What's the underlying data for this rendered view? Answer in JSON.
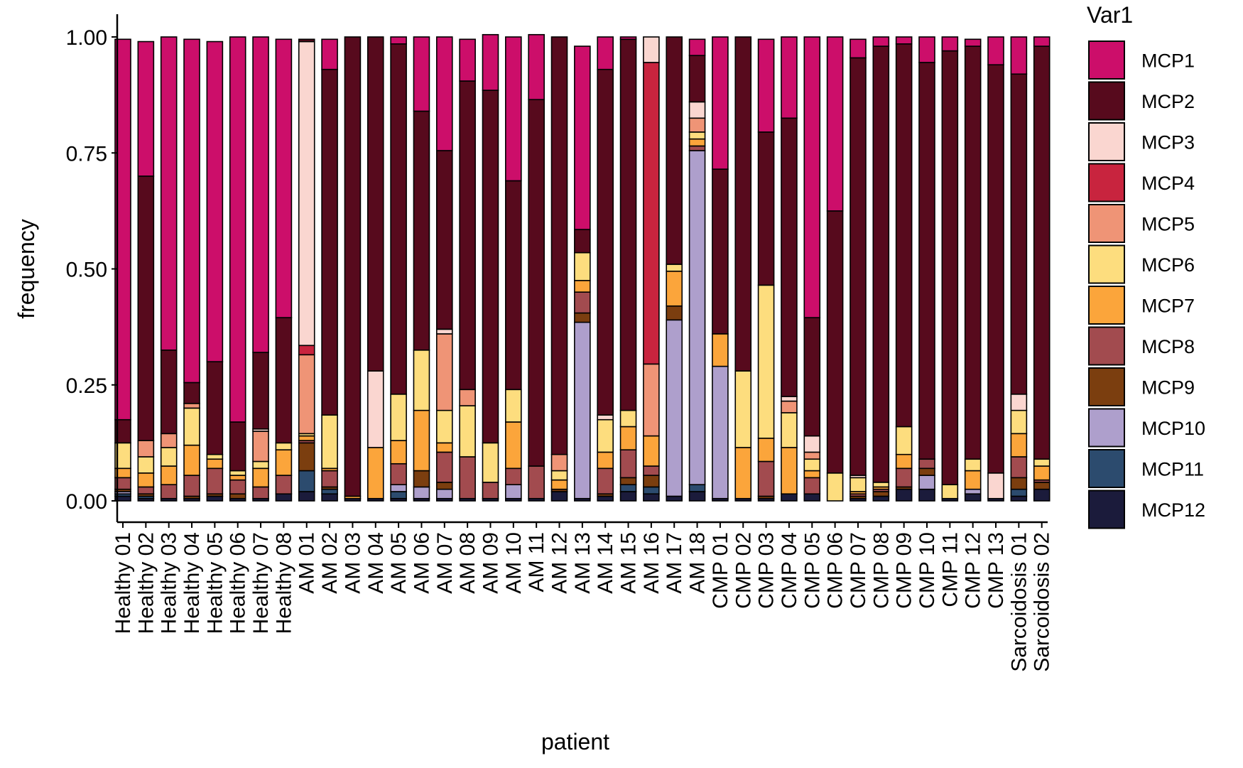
{
  "chart_data": {
    "type": "bar",
    "stacked": true,
    "xlabel": "patient",
    "ylabel": "frequency",
    "ylim": [
      0,
      1
    ],
    "yticks": [
      "0.00",
      "0.25",
      "0.50",
      "0.75",
      "1.00"
    ],
    "ytick_values": [
      0,
      0.25,
      0.5,
      0.75,
      1.0
    ],
    "grid": false,
    "legend": {
      "title": "Var1",
      "placement": "right"
    },
    "categories": [
      "Healthy 01",
      "Healthy 02",
      "Healthy 03",
      "Healthy 04",
      "Healthy 05",
      "Healthy 06",
      "Healthy 07",
      "Healthy 08",
      "AM 01",
      "AM 02",
      "AM 03",
      "AM 04",
      "AM 05",
      "AM 06",
      "AM 07",
      "AM 08",
      "AM 09",
      "AM 10",
      "AM 11",
      "AM 12",
      "AM 13",
      "AM 14",
      "AM 15",
      "AM 16",
      "AM 17",
      "AM 18",
      "CMP 01",
      "CMP 02",
      "CMP 03",
      "CMP 04",
      "CMP 05",
      "CMP 06",
      "CMP 07",
      "CMP 08",
      "CMP 09",
      "CMP 10",
      "CMP 11",
      "CMP 12",
      "CMP 13",
      "Sarcoidosis 01",
      "Sarcoidosis 02"
    ],
    "series": [
      {
        "name": "MCP1",
        "color": "#CC0E6A",
        "values": [
          0.82,
          0.29,
          0.675,
          0.74,
          0.69,
          0.83,
          0.68,
          0.6,
          0,
          0.065,
          0,
          0,
          0.015,
          0.16,
          0.245,
          0.09,
          0.12,
          0.31,
          0.14,
          0,
          0.395,
          0.07,
          0.005,
          0,
          0,
          0.035,
          0.285,
          0,
          0.2,
          0.175,
          0.605,
          0.375,
          0.04,
          0.02,
          0.015,
          0.055,
          0.03,
          0.015,
          0.06,
          0.08,
          0.02
        ]
      },
      {
        "name": "MCP2",
        "color": "#570A1D",
        "values": [
          0.05,
          0.57,
          0.18,
          0.045,
          0.2,
          0.105,
          0.165,
          0.27,
          0.005,
          0.745,
          0.99,
          0.72,
          0.755,
          0.515,
          0.385,
          0.665,
          0.76,
          0.45,
          0.79,
          0.9,
          0.05,
          0.745,
          0.8,
          0,
          0.49,
          0.1,
          0.355,
          0.72,
          0.33,
          0.6,
          0.255,
          0.565,
          0.9,
          0.94,
          0.825,
          0.855,
          0.935,
          0.89,
          0.88,
          0.69,
          0.89
        ]
      },
      {
        "name": "MCP3",
        "color": "#FAD6D0",
        "values": [
          0,
          0,
          0,
          0,
          0,
          0,
          0.005,
          0,
          0.655,
          0,
          0,
          0.165,
          0,
          0,
          0.01,
          0,
          0,
          0,
          0,
          0,
          0,
          0.01,
          0,
          0.055,
          0,
          0.035,
          0,
          0,
          0,
          0.01,
          0.035,
          0,
          0.005,
          0,
          0,
          0,
          0,
          0,
          0.055,
          0.035,
          0
        ]
      },
      {
        "name": "MCP4",
        "color": "#C8243E",
        "values": [
          0,
          0,
          0,
          0,
          0,
          0,
          0,
          0,
          0.02,
          0,
          0,
          0,
          0,
          0,
          0,
          0,
          0,
          0,
          0,
          0,
          0,
          0,
          0,
          0.65,
          0,
          0,
          0,
          0,
          0,
          0,
          0,
          0,
          0,
          0,
          0,
          0,
          0,
          0,
          0,
          0,
          0
        ]
      },
      {
        "name": "MCP5",
        "color": "#EF9476",
        "values": [
          0,
          0.035,
          0.03,
          0.01,
          0,
          0,
          0.065,
          0,
          0.17,
          0,
          0,
          0,
          0,
          0,
          0.165,
          0.035,
          0,
          0,
          0,
          0.035,
          0,
          0,
          0,
          0.155,
          0,
          0.03,
          0,
          0,
          0,
          0.025,
          0.015,
          0,
          0,
          0,
          0,
          0,
          0,
          0,
          0,
          0,
          0
        ]
      },
      {
        "name": "MCP6",
        "color": "#FDDD7E",
        "values": [
          0.055,
          0.035,
          0.04,
          0.08,
          0.01,
          0.01,
          0.015,
          0.015,
          0.005,
          0.115,
          0,
          0,
          0.1,
          0.13,
          0.07,
          0.11,
          0.085,
          0.07,
          0,
          0.02,
          0.06,
          0.07,
          0.035,
          0,
          0.015,
          0.015,
          0,
          0.165,
          0.33,
          0.075,
          0.025,
          0.06,
          0.03,
          0.01,
          0.06,
          0,
          0.03,
          0.025,
          0,
          0.05,
          0.015
        ]
      },
      {
        "name": "MCP7",
        "color": "#FBA53B",
        "values": [
          0.02,
          0.03,
          0.04,
          0.065,
          0.02,
          0.01,
          0.04,
          0.055,
          0.01,
          0.005,
          0.005,
          0.11,
          0.05,
          0.13,
          0.02,
          0,
          0,
          0.1,
          0,
          0.02,
          0.025,
          0.035,
          0.05,
          0.065,
          0.075,
          0.015,
          0.07,
          0.11,
          0.05,
          0.1,
          0.015,
          0,
          0.005,
          0.005,
          0.03,
          0,
          0,
          0.04,
          0,
          0.05,
          0.03
        ]
      },
      {
        "name": "MCP8",
        "color": "#A24B4F",
        "values": [
          0.025,
          0.015,
          0.03,
          0.045,
          0.055,
          0.03,
          0.025,
          0.04,
          0.005,
          0.035,
          0,
          0,
          0.045,
          0,
          0.065,
          0.09,
          0.035,
          0.035,
          0.07,
          0,
          0.045,
          0.055,
          0.06,
          0.02,
          0,
          0.01,
          0,
          0,
          0.075,
          0,
          0.035,
          0,
          0.005,
          0.005,
          0.04,
          0.02,
          0,
          0,
          0,
          0.045,
          0.005
        ]
      },
      {
        "name": "MCP9",
        "color": "#7B3E0F",
        "values": [
          0.005,
          0.005,
          0,
          0.005,
          0.005,
          0.01,
          0,
          0,
          0.06,
          0.005,
          0,
          0,
          0,
          0.035,
          0.015,
          0,
          0,
          0,
          0,
          0.005,
          0.02,
          0.005,
          0.015,
          0.025,
          0.03,
          0,
          0,
          0,
          0.005,
          0,
          0,
          0,
          0.005,
          0.01,
          0.005,
          0.015,
          0,
          0,
          0,
          0.025,
          0.015
        ]
      },
      {
        "name": "MCP10",
        "color": "#AE9FCC",
        "values": [
          0.005,
          0,
          0,
          0,
          0,
          0,
          0,
          0,
          0,
          0,
          0,
          0,
          0.015,
          0.025,
          0.02,
          0,
          0,
          0.03,
          0,
          0,
          0.38,
          0,
          0,
          0,
          0.38,
          0.72,
          0.285,
          0,
          0,
          0,
          0,
          0,
          0,
          0,
          0,
          0.03,
          0,
          0.01,
          0,
          0,
          0
        ]
      },
      {
        "name": "MCP11",
        "color": "#2C4B6E",
        "values": [
          0.005,
          0.005,
          0,
          0,
          0,
          0,
          0,
          0,
          0.045,
          0.01,
          0,
          0,
          0.015,
          0,
          0,
          0,
          0,
          0,
          0,
          0,
          0,
          0,
          0.015,
          0.015,
          0,
          0.015,
          0,
          0,
          0,
          0,
          0,
          0,
          0,
          0,
          0,
          0,
          0,
          0,
          0,
          0.015,
          0
        ]
      },
      {
        "name": "MCP12",
        "color": "#1B1B3B",
        "values": [
          0.01,
          0.005,
          0.005,
          0.005,
          0.01,
          0.005,
          0.005,
          0.015,
          0.02,
          0.015,
          0.005,
          0.005,
          0.005,
          0.005,
          0.005,
          0.005,
          0.005,
          0.005,
          0.005,
          0.02,
          0.005,
          0.01,
          0.02,
          0.015,
          0.01,
          0.02,
          0.005,
          0.005,
          0.005,
          0.015,
          0.015,
          0,
          0.005,
          0.01,
          0.025,
          0.025,
          0.005,
          0.015,
          0.005,
          0.01,
          0.025
        ]
      }
    ]
  }
}
